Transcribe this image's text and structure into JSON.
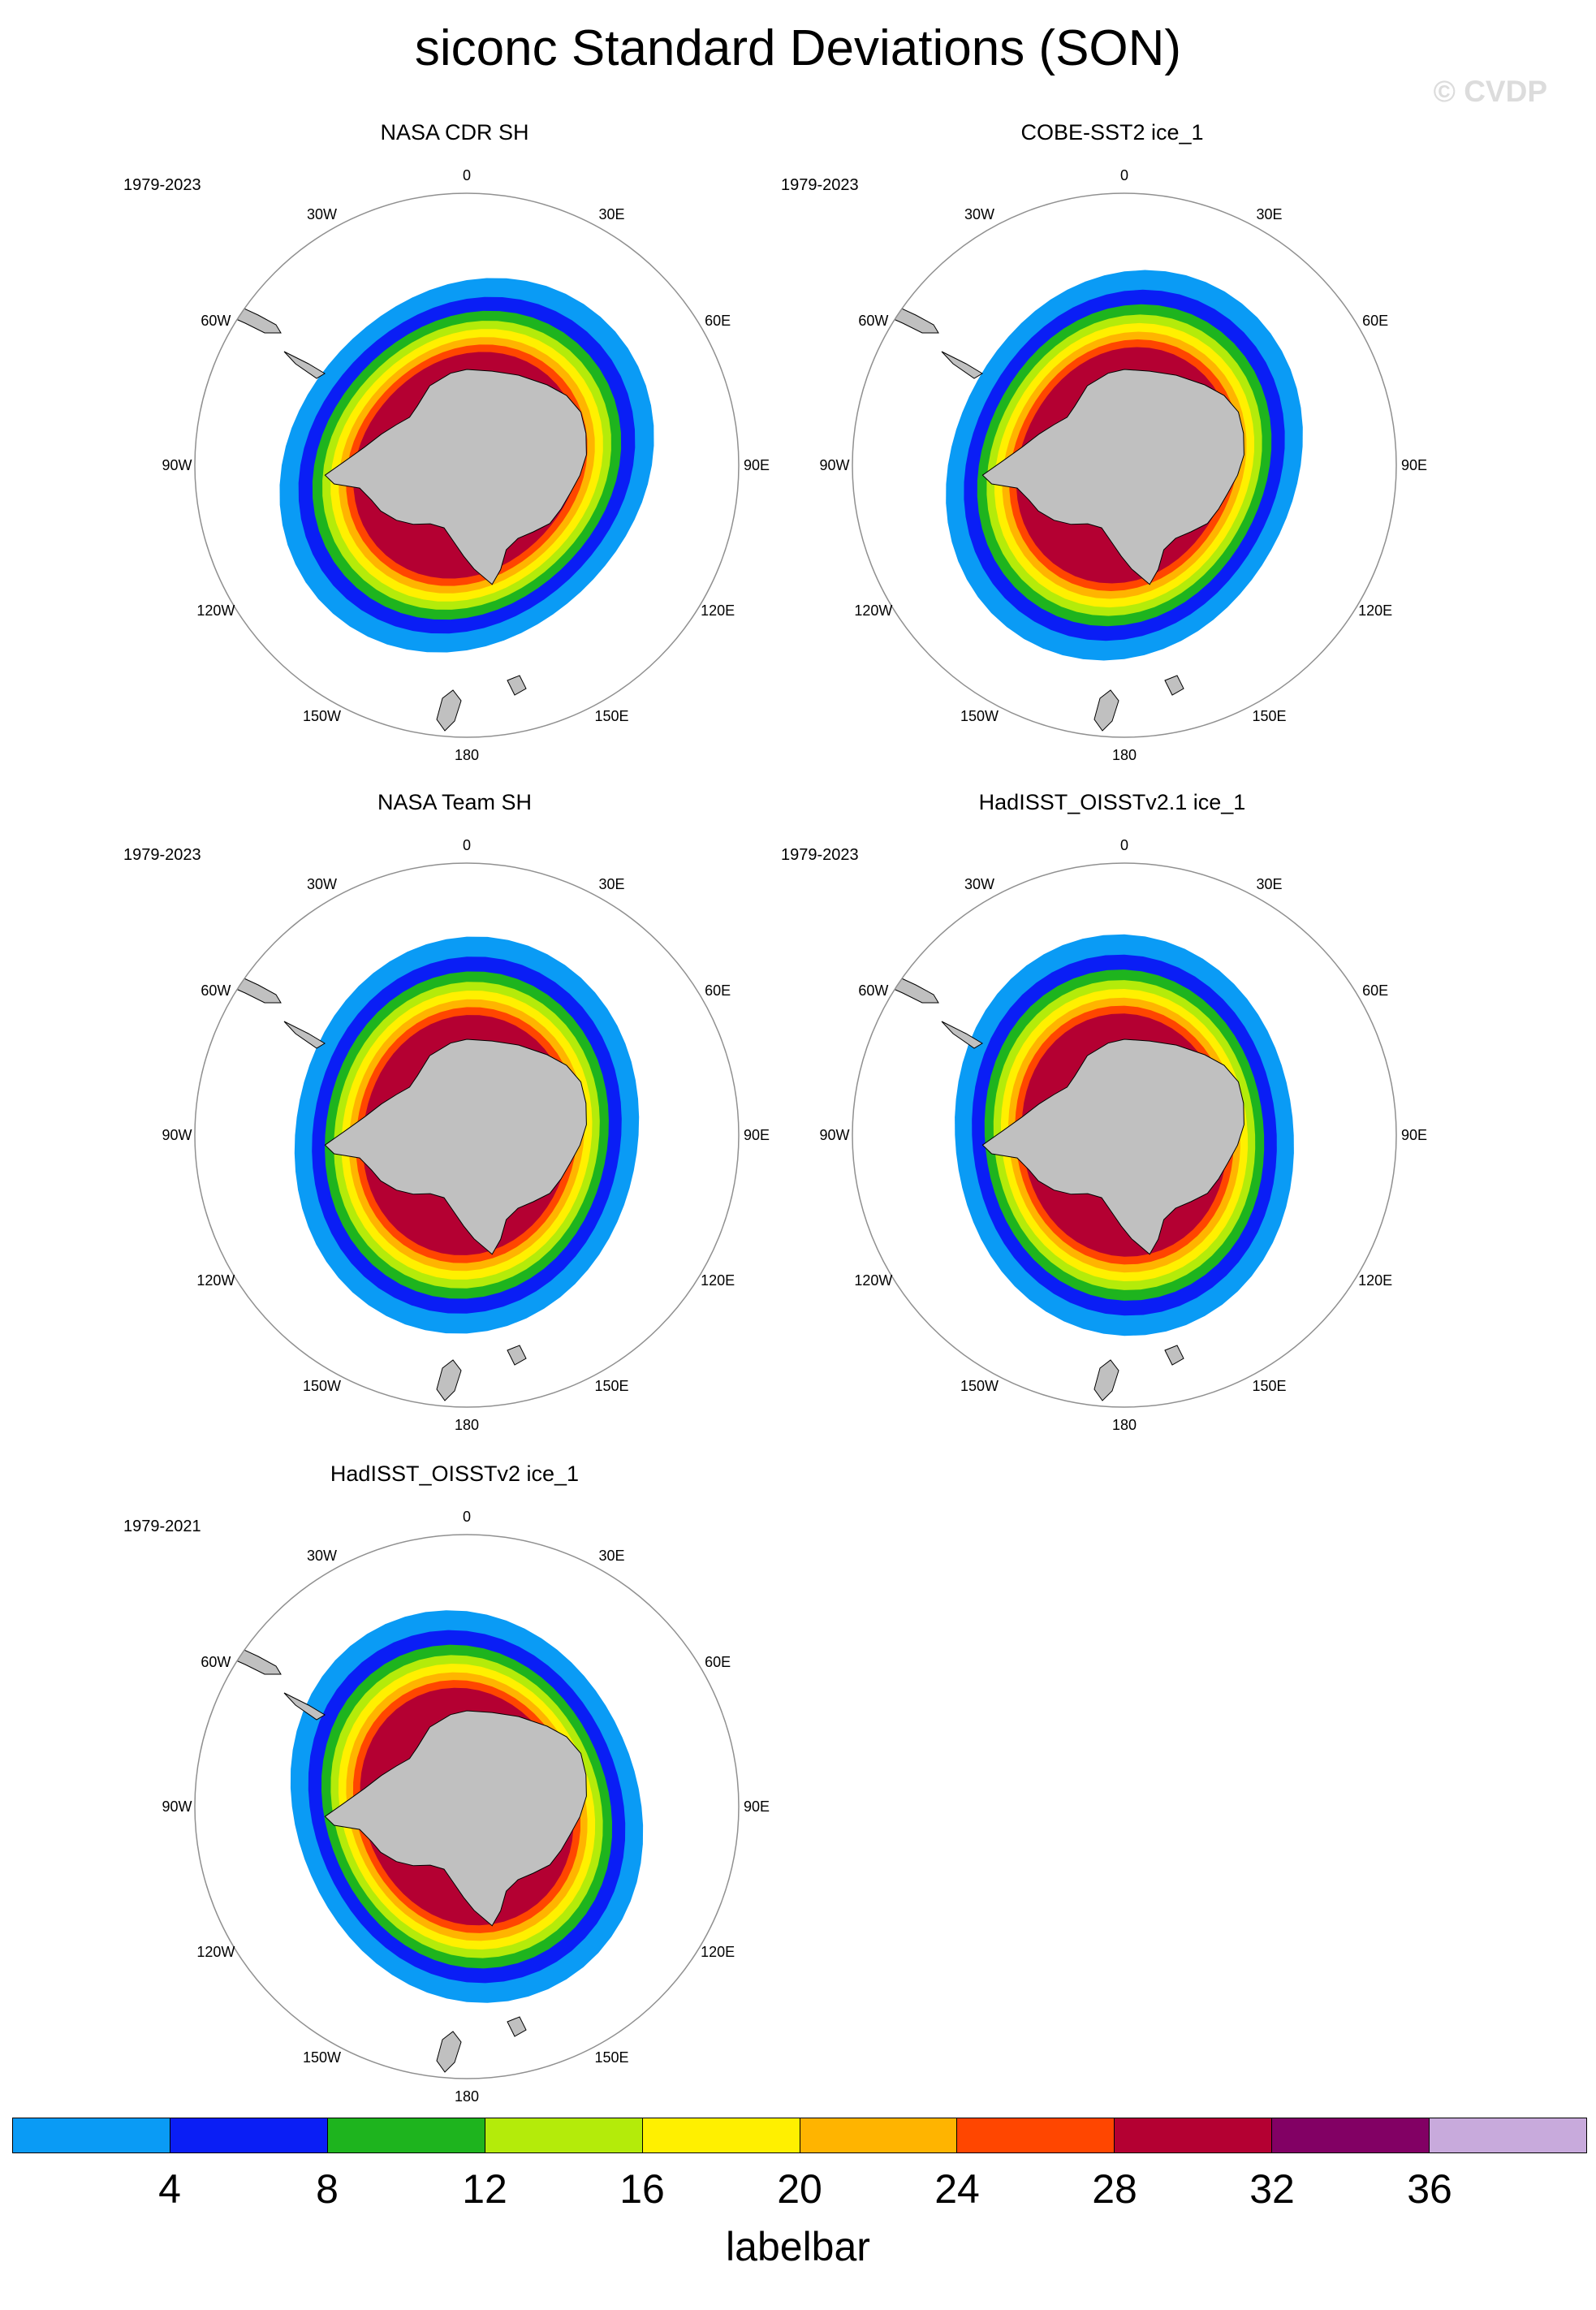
{
  "figure": {
    "title": "siconc Standard Deviations (SON)",
    "watermark": "© CVDP"
  },
  "longitude_labels": [
    "0",
    "30E",
    "60E",
    "90E",
    "120E",
    "150E",
    "180",
    "150W",
    "120W",
    "90W",
    "60W",
    "30W"
  ],
  "panels": [
    {
      "title": "NASA CDR SH",
      "period": "1979-2023"
    },
    {
      "title": "COBE-SST2 ice_1",
      "period": "1979-2023"
    },
    {
      "title": "NASA Team SH",
      "period": "1979-2023"
    },
    {
      "title": "HadISST_OISSTv2.1 ice_1",
      "period": "1979-2023"
    },
    {
      "title": "HadISST_OISSTv2 ice_1",
      "period": "1979-2021"
    }
  ],
  "labelbar": {
    "title": "labelbar",
    "ticks": [
      "4",
      "8",
      "12",
      "16",
      "20",
      "24",
      "28",
      "32",
      "36"
    ],
    "colors": [
      "#0a9bf5",
      "#0a1ef5",
      "#1eb41e",
      "#b4eb0a",
      "#fff000",
      "#ffb400",
      "#ff4600",
      "#b40032",
      "#820064",
      "#c8aadc"
    ]
  },
  "styles": {
    "land_color": "#c0c0c0",
    "outline_color": "#000000"
  }
}
